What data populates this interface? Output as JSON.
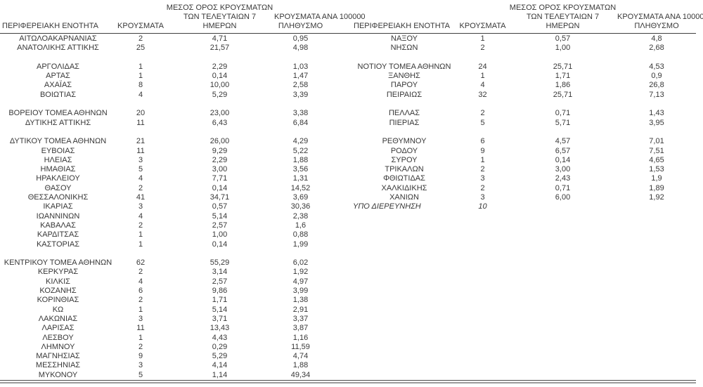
{
  "page": {
    "background": "#ffffff",
    "text_color": "#383838",
    "header_rule_color": "#3f3f3f",
    "bottom_rule_dark": "#4a4a4a",
    "bottom_rule_gray": "#9b9b9b"
  },
  "columns": {
    "region": "ΠΕΡΙΦΕΡΕΙΑΚΗ ΕΝΟΤΗΤΑ",
    "cases": "ΚΡΟΥΣΜΑΤΑ",
    "avg7_lines": [
      "ΜΕΣΟΣ ΟΡΟΣ ΚΡΟΥΣΜΑΤΩΝ",
      "ΤΩΝ ΤΕΛΕΥΤΑΙΩΝ 7",
      "ΗΜΕΡΩΝ"
    ],
    "per100k_lines": [
      "ΚΡΟΥΣΜΑΤΑ ΑΝΑ 100000",
      "ΠΛΗΘΥΣΜΟ"
    ]
  },
  "left_table": {
    "rows": [
      {
        "cells": [
          "ΑΙΤΩΛΟΑΚΑΡΝΑΝΙΑΣ",
          "2",
          "4,71",
          "0,95"
        ]
      },
      {
        "cells": [
          "ΑΝΑΤΟΛΙΚΗΣ ΑΤΤΙΚΗΣ",
          "25",
          "21,57",
          "4,98"
        ]
      },
      {
        "blank": true
      },
      {
        "cells": [
          "ΑΡΓΟΛΙΔΑΣ",
          "1",
          "2,29",
          "1,03"
        ]
      },
      {
        "cells": [
          "ΑΡΤΑΣ",
          "1",
          "0,14",
          "1,47"
        ]
      },
      {
        "cells": [
          "ΑΧΑΪΑΣ",
          "8",
          "10,00",
          "2,58"
        ]
      },
      {
        "cells": [
          "ΒΟΙΩΤΙΑΣ",
          "4",
          "5,29",
          "3,39"
        ]
      },
      {
        "blank": true
      },
      {
        "cells": [
          "ΒΟΡΕΙΟΥ ΤΟΜΕΑ ΑΘΗΝΩΝ",
          "20",
          "23,00",
          "3,38"
        ]
      },
      {
        "cells": [
          "ΔΥΤΙΚΗΣ ΑΤΤΙΚΗΣ",
          "11",
          "6,43",
          "6,84"
        ]
      },
      {
        "blank": true
      },
      {
        "cells": [
          "ΔΥΤΙΚΟΥ ΤΟΜΕΑ ΑΘΗΝΩΝ",
          "21",
          "26,00",
          "4,29"
        ]
      },
      {
        "cells": [
          "ΕΥΒΟΙΑΣ",
          "11",
          "9,29",
          "5,22"
        ]
      },
      {
        "cells": [
          "ΗΛΕΙΑΣ",
          "3",
          "2,29",
          "1,88"
        ]
      },
      {
        "cells": [
          "ΗΜΑΘΙΑΣ",
          "5",
          "3,00",
          "3,56"
        ]
      },
      {
        "cells": [
          "ΗΡΑΚΛΕΙΟΥ",
          "4",
          "7,71",
          "1,31"
        ]
      },
      {
        "cells": [
          "ΘΑΣΟΥ",
          "2",
          "0,14",
          "14,52"
        ]
      },
      {
        "cells": [
          "ΘΕΣΣΑΛΟΝΙΚΗΣ",
          "41",
          "34,71",
          "3,69"
        ]
      },
      {
        "cells": [
          "ΙΚΑΡΙΑΣ",
          "3",
          "0,57",
          "30,36"
        ]
      },
      {
        "cells": [
          "ΙΩΑΝΝΙΝΩΝ",
          "4",
          "5,14",
          "2,38"
        ]
      },
      {
        "cells": [
          "ΚΑΒΑΛΑΣ",
          "2",
          "2,57",
          "1,6"
        ]
      },
      {
        "cells": [
          "ΚΑΡΔΙΤΣΑΣ",
          "1",
          "1,00",
          "0,88"
        ]
      },
      {
        "cells": [
          "ΚΑΣΤΟΡΙΑΣ",
          "1",
          "0,14",
          "1,99"
        ]
      },
      {
        "blank": true
      },
      {
        "cells": [
          "ΚΕΝΤΡΙΚΟΥ ΤΟΜΕΑ ΑΘΗΝΩΝ",
          "62",
          "55,29",
          "6,02"
        ]
      },
      {
        "cells": [
          "ΚΕΡΚΥΡΑΣ",
          "2",
          "3,14",
          "1,92"
        ]
      },
      {
        "cells": [
          "ΚΙΛΚΙΣ",
          "4",
          "2,57",
          "4,97"
        ]
      },
      {
        "cells": [
          "ΚΟΖΑΝΗΣ",
          "6",
          "9,86",
          "3,99"
        ]
      },
      {
        "cells": [
          "ΚΟΡΙΝΘΙΑΣ",
          "2",
          "1,71",
          "1,38"
        ]
      },
      {
        "cells": [
          "ΚΩ",
          "1",
          "5,14",
          "2,91"
        ]
      },
      {
        "cells": [
          "ΛΑΚΩΝΙΑΣ",
          "3",
          "3,71",
          "3,37"
        ]
      },
      {
        "cells": [
          "ΛΑΡΙΣΑΣ",
          "11",
          "13,43",
          "3,87"
        ]
      },
      {
        "cells": [
          "ΛΕΣΒΟΥ",
          "1",
          "4,43",
          "1,16"
        ]
      },
      {
        "cells": [
          "ΛΗΜΝΟΥ",
          "2",
          "0,29",
          "11,59"
        ]
      },
      {
        "cells": [
          "ΜΑΓΝΗΣΙΑΣ",
          "9",
          "5,29",
          "4,74"
        ]
      },
      {
        "cells": [
          "ΜΕΣΣΗΝΙΑΣ",
          "3",
          "4,14",
          "1,88"
        ]
      },
      {
        "cells": [
          "ΜΥΚΟΝΟΥ",
          "5",
          "1,14",
          "49,34"
        ]
      }
    ]
  },
  "right_table": {
    "rows": [
      {
        "cells": [
          "ΝΑΞΟΥ",
          "1",
          "0,57",
          "4,8"
        ]
      },
      {
        "cells": [
          "ΝΗΣΩΝ",
          "2",
          "1,00",
          "2,68"
        ]
      },
      {
        "blank": true
      },
      {
        "cells": [
          "ΝΟΤΙΟΥ ΤΟΜΕΑ ΑΘΗΝΩΝ",
          "24",
          "25,71",
          "4,53"
        ]
      },
      {
        "cells": [
          "ΞΑΝΘΗΣ",
          "1",
          "1,71",
          "0,9"
        ]
      },
      {
        "cells": [
          "ΠΑΡΟΥ",
          "4",
          "1,86",
          "26,8"
        ]
      },
      {
        "cells": [
          "ΠΕΙΡΑΙΩΣ",
          "32",
          "25,71",
          "7,13"
        ]
      },
      {
        "blank": true
      },
      {
        "cells": [
          "ΠΕΛΛΑΣ",
          "2",
          "0,71",
          "1,43"
        ]
      },
      {
        "cells": [
          "ΠΙΕΡΙΑΣ",
          "5",
          "5,71",
          "3,95"
        ]
      },
      {
        "blank": true
      },
      {
        "cells": [
          "ΡΕΘΥΜΝΟΥ",
          "6",
          "4,57",
          "7,01"
        ]
      },
      {
        "cells": [
          "ΡΟΔΟΥ",
          "9",
          "6,57",
          "7,51"
        ]
      },
      {
        "cells": [
          "ΣΥΡΟΥ",
          "1",
          "0,14",
          "4,65"
        ]
      },
      {
        "cells": [
          "ΤΡΙΚΑΛΩΝ",
          "2",
          "3,00",
          "1,53"
        ]
      },
      {
        "cells": [
          "ΦΘΙΩΤΙΔΑΣ",
          "3",
          "2,43",
          "1,9"
        ]
      },
      {
        "cells": [
          "ΧΑΛΚΙΔΙΚΗΣ",
          "2",
          "0,71",
          "1,89"
        ]
      },
      {
        "cells": [
          "ΧΑΝΙΩΝ",
          "3",
          "6,00",
          "1,92"
        ]
      },
      {
        "cells": [
          "ΥΠΟ ΔΙΕΡΕΥΝΗΣΗ",
          "10",
          "",
          ""
        ],
        "italic": true
      }
    ]
  }
}
